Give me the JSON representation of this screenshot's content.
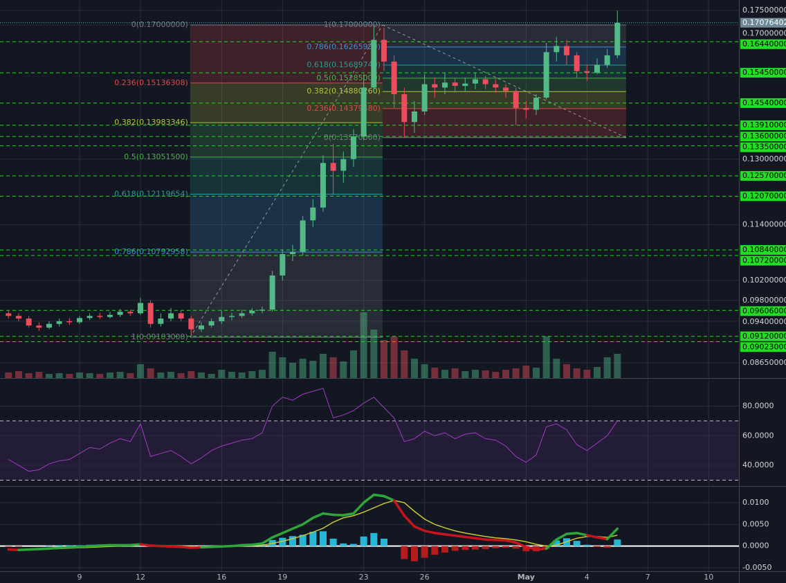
{
  "chart_data": [
    {
      "type": "candlestick",
      "log_scale": true,
      "grid": true,
      "xlim": [
        5.08,
        41.49
      ],
      "xticks": [
        9,
        12,
        16,
        19,
        23,
        26,
        {
          "value": 31,
          "label": "May"
        },
        {
          "value": 34,
          "label": "4"
        },
        {
          "value": 37,
          "label": "7"
        },
        {
          "value": 40,
          "label": "10"
        }
      ],
      "ylim": [
        0.0839,
        0.1787
      ],
      "yticks": [
        {
          "value": 0.175,
          "label": "0.17500000"
        },
        {
          "value": 0.17,
          "label": "0.17000000"
        },
        {
          "value": 0.13,
          "label": "0.13000000"
        },
        {
          "value": 0.114,
          "label": "0.11400000"
        },
        {
          "value": 0.102,
          "label": "0.10200000"
        },
        {
          "value": 0.098,
          "label": "0.09800000"
        },
        {
          "value": 0.094,
          "label": "0.09400000"
        },
        {
          "value": 0.0865,
          "label": "0.08650000"
        }
      ],
      "up_color": "#53b987",
      "down_color": "#eb4d5c",
      "x": [
        5.5,
        6,
        6.5,
        7,
        7.5,
        8,
        8.5,
        9,
        9.5,
        10,
        10.5,
        11,
        11.5,
        12,
        12.5,
        13,
        13.5,
        14,
        14.5,
        15,
        15.5,
        16,
        16.5,
        17,
        17.5,
        18,
        18.5,
        19,
        19.5,
        20,
        20.5,
        21,
        21.5,
        22,
        22.5,
        23,
        23.5,
        24,
        24.5,
        25,
        25.5,
        26,
        26.5,
        27,
        27.5,
        28,
        28.5,
        29,
        29.5,
        30,
        30.5,
        31,
        31.5,
        32,
        32.5,
        33,
        33.5,
        34,
        34.5,
        35,
        35.5
      ],
      "open": [
        0.0955,
        0.095,
        0.0945,
        0.0932,
        0.0928,
        0.0935,
        0.094,
        0.0938,
        0.0946,
        0.095,
        0.0948,
        0.0952,
        0.0958,
        0.0955,
        0.0975,
        0.0935,
        0.0945,
        0.0955,
        0.0945,
        0.0925,
        0.0932,
        0.094,
        0.0948,
        0.095,
        0.0955,
        0.096,
        0.0962,
        0.103,
        0.1075,
        0.108,
        0.115,
        0.118,
        0.129,
        0.127,
        0.13,
        0.136,
        0.15,
        0.165,
        0.158,
        0.148,
        0.14,
        0.143,
        0.151,
        0.15,
        0.1515,
        0.1505,
        0.1512,
        0.1525,
        0.151,
        0.15,
        0.149,
        0.144,
        0.1435,
        0.147,
        0.161,
        0.163,
        0.16,
        0.155,
        0.1545,
        0.157,
        0.16
      ],
      "high": [
        0.096,
        0.0955,
        0.095,
        0.0938,
        0.094,
        0.0945,
        0.0946,
        0.095,
        0.0955,
        0.0956,
        0.0958,
        0.0963,
        0.0962,
        0.0985,
        0.098,
        0.0955,
        0.0965,
        0.096,
        0.095,
        0.0938,
        0.0945,
        0.096,
        0.0956,
        0.0962,
        0.0965,
        0.0968,
        0.104,
        0.1085,
        0.1095,
        0.116,
        0.12,
        0.131,
        0.134,
        0.132,
        0.138,
        0.154,
        0.17,
        0.169,
        0.16,
        0.15,
        0.146,
        0.154,
        0.153,
        0.1545,
        0.153,
        0.153,
        0.1545,
        0.1535,
        0.1525,
        0.151,
        0.15,
        0.146,
        0.148,
        0.164,
        0.166,
        0.165,
        0.161,
        0.157,
        0.159,
        0.162,
        0.175
      ],
      "low": [
        0.0945,
        0.094,
        0.0928,
        0.0922,
        0.0925,
        0.093,
        0.0933,
        0.0935,
        0.0942,
        0.0944,
        0.0945,
        0.0948,
        0.095,
        0.0952,
        0.0928,
        0.093,
        0.094,
        0.094,
        0.0915,
        0.092,
        0.0928,
        0.0935,
        0.0942,
        0.0946,
        0.095,
        0.0955,
        0.0958,
        0.102,
        0.106,
        0.1072,
        0.1135,
        0.117,
        0.121,
        0.124,
        0.128,
        0.135,
        0.149,
        0.155,
        0.144,
        0.1357,
        0.137,
        0.142,
        0.147,
        0.148,
        0.1485,
        0.149,
        0.1495,
        0.1495,
        0.1485,
        0.147,
        0.1391,
        0.141,
        0.142,
        0.1465,
        0.158,
        0.157,
        0.153,
        0.152,
        0.154,
        0.156,
        0.159
      ],
      "close": [
        0.095,
        0.0945,
        0.0932,
        0.0928,
        0.0935,
        0.094,
        0.0938,
        0.0946,
        0.095,
        0.0948,
        0.0952,
        0.0958,
        0.0955,
        0.0975,
        0.0935,
        0.0945,
        0.0955,
        0.0945,
        0.0925,
        0.0932,
        0.094,
        0.0948,
        0.095,
        0.0955,
        0.096,
        0.0962,
        0.103,
        0.1075,
        0.108,
        0.115,
        0.118,
        0.129,
        0.127,
        0.13,
        0.136,
        0.15,
        0.165,
        0.158,
        0.148,
        0.14,
        0.143,
        0.151,
        0.15,
        0.1515,
        0.1505,
        0.1512,
        0.1525,
        0.151,
        0.15,
        0.149,
        0.144,
        0.1435,
        0.147,
        0.161,
        0.163,
        0.16,
        0.155,
        0.1545,
        0.157,
        0.16,
        0.1707
      ],
      "volume": [
        8,
        10,
        7,
        9,
        6,
        7,
        6,
        8,
        7,
        6,
        8,
        9,
        7,
        20,
        14,
        8,
        9,
        7,
        10,
        8,
        6,
        12,
        9,
        8,
        10,
        12,
        38,
        30,
        22,
        28,
        25,
        35,
        30,
        24,
        40,
        95,
        70,
        55,
        60,
        40,
        28,
        20,
        15,
        12,
        14,
        10,
        12,
        11,
        9,
        12,
        14,
        18,
        15,
        60,
        28,
        20,
        14,
        12,
        16,
        30,
        35
      ],
      "vlim": [
        0,
        100
      ],
      "current_price": 0.17076402,
      "levels_color": "#22dd22",
      "levels": [
        {
          "value": 0.1644,
          "label": "0.16440000"
        },
        {
          "value": 0.1545,
          "label": "0.15450000"
        },
        {
          "value": 0.1454,
          "label": "0.14540000"
        },
        {
          "value": 0.1391,
          "label": "0.13910000"
        },
        {
          "value": 0.136,
          "label": "0.13600000"
        },
        {
          "value": 0.1335,
          "label": "0.13350000"
        },
        {
          "value": 0.1257,
          "label": "0.12570000"
        },
        {
          "value": 0.1207,
          "label": "0.12070000"
        },
        {
          "value": 0.1084,
          "label": "0.10840000"
        },
        {
          "value": 0.1072,
          "label": "0.10720000"
        },
        {
          "value": 0.09606,
          "label": "0.09606000"
        },
        {
          "value": 0.0912,
          "label": "0.09120000"
        },
        {
          "value": 0.09023,
          "label": "0.09023000"
        }
      ],
      "fibs": [
        {
          "x": [
            14.45,
            23.93
          ],
          "levels": [
            {
              "ratio": 0,
              "price": 0.17,
              "label": "0(0.17000000)",
              "color": "#787b86"
            },
            {
              "ratio": 0.236,
              "price": 0.15136308,
              "label": "0.236(0.15136308)",
              "color": "#e04848"
            },
            {
              "ratio": 0.382,
              "price": 0.13983346,
              "label": "0.382(0.13983346)",
              "color": "#b5c43a"
            },
            {
              "ratio": 0.5,
              "price": 0.130515,
              "label": "0.5(0.13051500)",
              "color": "#4caf50"
            },
            {
              "ratio": 0.618,
              "price": 0.12119654,
              "label": "0.618(0.12119654)",
              "color": "#2a9d8f"
            },
            {
              "ratio": 0.786,
              "price": 0.10792958,
              "label": "0.786(0.10792958)",
              "color": "#3f8fd0"
            },
            {
              "ratio": 1,
              "price": 0.09103,
              "label": "1(0.09103000)",
              "color": "#787b86"
            }
          ]
        },
        {
          "x": [
            23.93,
            35.93
          ],
          "levels": [
            {
              "ratio": 1,
              "price": 0.17,
              "label": "1(0.17000000)",
              "color": "#787b86"
            },
            {
              "ratio": 0.786,
              "price": 0.1626598,
              "label": "0.786(0.16265980)",
              "color": "#3f8fd0"
            },
            {
              "ratio": 0.618,
              "price": 0.1568974,
              "label": "0.618(0.15689740)",
              "color": "#2a9d8f"
            },
            {
              "ratio": 0.5,
              "price": 0.15285,
              "label": "0.5(0.15285000)",
              "color": "#4caf50"
            },
            {
              "ratio": 0.382,
              "price": 0.1488026,
              "label": "0.382(0.14880260)",
              "color": "#b5c43a"
            },
            {
              "ratio": 0.236,
              "price": 0.1437948,
              "label": "0.236(0.14379480)",
              "color": "#e04848"
            },
            {
              "ratio": 0,
              "price": 0.1357,
              "label": "0(0.13570000)",
              "color": "#787b86"
            }
          ]
        }
      ]
    },
    {
      "type": "line",
      "ylim": [
        26,
        98
      ],
      "yticks": [
        {
          "value": 80,
          "label": "80.0000"
        },
        {
          "value": 60,
          "label": "60.0000"
        },
        {
          "value": 40,
          "label": "40.0000"
        }
      ],
      "bands": [
        30,
        70
      ],
      "band_color": "#7e3fb0",
      "series": [
        {
          "color": "#a23cc4",
          "values": [
            44,
            40,
            36,
            37,
            41,
            43,
            44,
            48,
            52,
            51,
            55,
            58,
            56,
            68,
            46,
            48,
            50,
            46,
            41,
            45,
            50,
            53,
            55,
            57,
            58,
            62,
            80,
            86,
            84,
            88,
            90,
            92,
            72,
            74,
            77,
            82,
            86,
            79,
            72,
            56,
            58,
            63,
            60,
            62,
            58,
            61,
            62,
            58,
            57,
            53,
            46,
            42,
            47,
            66,
            68,
            64,
            54,
            50,
            55,
            60,
            70
          ]
        }
      ]
    },
    {
      "type": "macd",
      "ylim": [
        -0.0058,
        0.0135
      ],
      "yticks": [
        {
          "value": 0.01,
          "label": "0.0100"
        },
        {
          "value": 0.005,
          "label": "0.0050"
        },
        {
          "value": 0,
          "label": "0.0000"
        },
        {
          "value": -0.005,
          "label": "-0.0050"
        }
      ],
      "below_color": "#c8141e",
      "series": [
        {
          "color": "#2ea63a",
          "values": [
            -0.0008,
            -0.0009,
            -0.0008,
            -0.0007,
            -0.0006,
            -0.0004,
            -0.0003,
            -0.0002,
            0,
            0.0001,
            0.0002,
            0.0002,
            0.0002,
            0.0004,
            0.0001,
            0,
            -0.0001,
            -0.0002,
            -0.0004,
            -0.0003,
            -0.0002,
            -0.0001,
            0,
            0.0002,
            0.0003,
            0.0006,
            0.002,
            0.003,
            0.004,
            0.005,
            0.0065,
            0.0075,
            0.0072,
            0.0071,
            0.0075,
            0.01,
            0.0118,
            0.0115,
            0.0105,
            0.007,
            0.0045,
            0.0035,
            0.003,
            0.0027,
            0.0024,
            0.0021,
            0.0018,
            0.0015,
            0.0014,
            0.0013,
            0.0008,
            -0.0002,
            -0.0008,
            -0.0006,
            0.0015,
            0.0028,
            0.003,
            0.0025,
            0.002,
            0.0016,
            0.004
          ]
        },
        {
          "color": "#c8c832",
          "values": [
            -0.0007,
            -0.0008,
            -0.0008,
            -0.0007,
            -0.0007,
            -0.0006,
            -0.0005,
            -0.0004,
            -0.0003,
            -0.0002,
            -0.0001,
            0,
            0.0001,
            0.0002,
            0.0002,
            0.0001,
            0.0001,
            0,
            -0.0001,
            -0.0002,
            -0.0002,
            -0.0002,
            -0.0001,
            0,
            0.0001,
            0.0002,
            0.0006,
            0.0011,
            0.0017,
            0.0024,
            0.0032,
            0.0041,
            0.0055,
            0.0065,
            0.007,
            0.0078,
            0.0088,
            0.0098,
            0.0105,
            0.01,
            0.008,
            0.0062,
            0.005,
            0.0042,
            0.0035,
            0.003,
            0.0026,
            0.0022,
            0.0019,
            0.0017,
            0.0014,
            0.001,
            0.0004,
            0,
            0.0002,
            0.001,
            0.0018,
            0.0022,
            0.0022,
            0.002,
            0.0025
          ]
        },
        {
          "type": "histogram",
          "color": "#26b6d6",
          "negative_color": "#b71c1c",
          "values": [
            -0.0001,
            -0.0001,
            0,
            0,
            0.0001,
            0.0002,
            0.0002,
            0.0002,
            0.0003,
            0.0003,
            0.0003,
            0.0002,
            0.0001,
            0.0002,
            -0.0001,
            -0.0001,
            -0.0002,
            -0.0002,
            -0.0003,
            -0.0001,
            0,
            0.0001,
            0.0001,
            0.0002,
            0.0002,
            0.0004,
            0.0014,
            0.0019,
            0.0023,
            0.0026,
            0.0033,
            0.0034,
            0.0017,
            0.0006,
            0.0005,
            0.0022,
            0.003,
            0.0017,
            0,
            -0.003,
            -0.0035,
            -0.0027,
            -0.002,
            -0.0015,
            -0.0011,
            -0.0009,
            -0.0008,
            -0.0007,
            -0.0005,
            -0.0004,
            -0.0006,
            -0.0012,
            -0.0012,
            -0.0006,
            0.0013,
            0.0018,
            0.0012,
            0.0003,
            -0.0002,
            -0.0004,
            0.0015
          ]
        }
      ]
    }
  ]
}
